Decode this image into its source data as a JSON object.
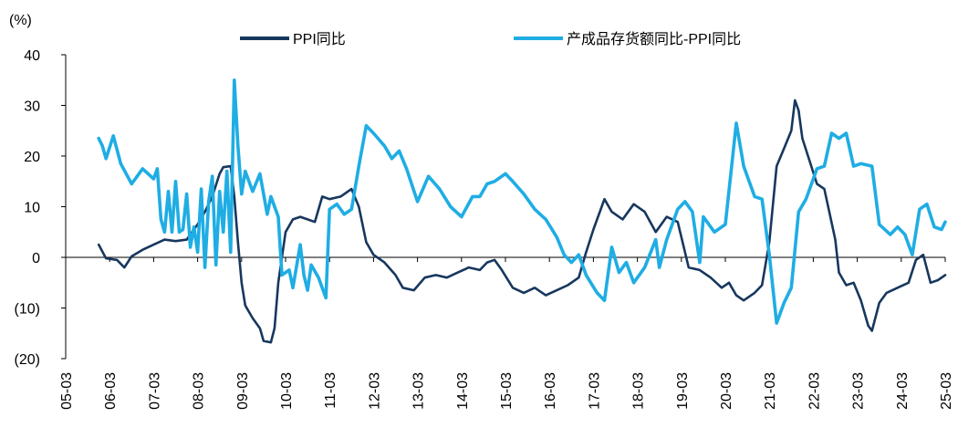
{
  "chart_data": {
    "type": "line",
    "unit_label": "(%)",
    "ylim": [
      -20,
      40
    ],
    "y_ticks": [
      -20,
      -10,
      0,
      10,
      20,
      30,
      40
    ],
    "y_tick_labels": [
      "(20)",
      "(10)",
      "0",
      "10",
      "20",
      "30",
      "40"
    ],
    "x_range": [
      "2005-03",
      "2025-03"
    ],
    "x_tick_labels": [
      "05-03",
      "06-03",
      "07-03",
      "08-03",
      "09-03",
      "10-03",
      "11-03",
      "12-03",
      "13-03",
      "14-03",
      "15-03",
      "16-03",
      "17-03",
      "18-03",
      "19-03",
      "20-03",
      "21-03",
      "22-03",
      "23-03",
      "24-03",
      "25-03"
    ],
    "grid": false,
    "legend_position": "top",
    "series": [
      {
        "name": "PPI同比",
        "color": "#17375E",
        "points": [
          [
            "2005-12",
            2.5
          ],
          [
            "2006-02",
            -0.2
          ],
          [
            "2006-05",
            -0.5
          ],
          [
            "2006-07",
            -2.0
          ],
          [
            "2006-09",
            0.2
          ],
          [
            "2006-12",
            1.5
          ],
          [
            "2007-03",
            2.5
          ],
          [
            "2007-06",
            3.5
          ],
          [
            "2007-09",
            3.2
          ],
          [
            "2007-12",
            3.5
          ],
          [
            "2008-03",
            6.5
          ],
          [
            "2008-05",
            9.0
          ],
          [
            "2008-07",
            12.0
          ],
          [
            "2008-09",
            16.5
          ],
          [
            "2008-10",
            17.8
          ],
          [
            "2008-12",
            18.0
          ],
          [
            "2009-01",
            12.0
          ],
          [
            "2009-02",
            3.0
          ],
          [
            "2009-03",
            -5.0
          ],
          [
            "2009-04",
            -9.5
          ],
          [
            "2009-06",
            -12.0
          ],
          [
            "2009-08",
            -14.0
          ],
          [
            "2009-09",
            -16.5
          ],
          [
            "2009-11",
            -16.8
          ],
          [
            "2009-12",
            -14.0
          ],
          [
            "2010-01",
            -5.0
          ],
          [
            "2010-03",
            5.0
          ],
          [
            "2010-05",
            7.5
          ],
          [
            "2010-07",
            8.0
          ],
          [
            "2010-09",
            7.5
          ],
          [
            "2010-11",
            7.0
          ],
          [
            "2011-01",
            12.0
          ],
          [
            "2011-03",
            11.5
          ],
          [
            "2011-06",
            12.0
          ],
          [
            "2011-09",
            13.5
          ],
          [
            "2011-11",
            10.0
          ],
          [
            "2012-01",
            3.0
          ],
          [
            "2012-03",
            0.5
          ],
          [
            "2012-06",
            -1.0
          ],
          [
            "2012-09",
            -3.5
          ],
          [
            "2012-11",
            -6.0
          ],
          [
            "2013-02",
            -6.5
          ],
          [
            "2013-05",
            -4.0
          ],
          [
            "2013-08",
            -3.5
          ],
          [
            "2013-11",
            -4.0
          ],
          [
            "2014-02",
            -3.0
          ],
          [
            "2014-05",
            -2.0
          ],
          [
            "2014-08",
            -2.5
          ],
          [
            "2014-10",
            -1.0
          ],
          [
            "2014-12",
            -0.5
          ],
          [
            "2015-02",
            -2.5
          ],
          [
            "2015-05",
            -6.0
          ],
          [
            "2015-08",
            -7.0
          ],
          [
            "2015-11",
            -6.0
          ],
          [
            "2016-02",
            -7.5
          ],
          [
            "2016-05",
            -6.5
          ],
          [
            "2016-08",
            -5.5
          ],
          [
            "2016-11",
            -4.0
          ],
          [
            "2017-01",
            1.0
          ],
          [
            "2017-03",
            5.5
          ],
          [
            "2017-06",
            11.5
          ],
          [
            "2017-08",
            9.0
          ],
          [
            "2017-11",
            7.5
          ],
          [
            "2018-02",
            10.5
          ],
          [
            "2018-05",
            9.0
          ],
          [
            "2018-08",
            5.0
          ],
          [
            "2018-11",
            8.0
          ],
          [
            "2019-02",
            7.0
          ],
          [
            "2019-05",
            -2.0
          ],
          [
            "2019-08",
            -2.5
          ],
          [
            "2019-11",
            -4.0
          ],
          [
            "2020-02",
            -6.0
          ],
          [
            "2020-04",
            -5.0
          ],
          [
            "2020-06",
            -7.5
          ],
          [
            "2020-08",
            -8.5
          ],
          [
            "2020-11",
            -7.0
          ],
          [
            "2021-01",
            -5.5
          ],
          [
            "2021-03",
            3.0
          ],
          [
            "2021-05",
            18.0
          ],
          [
            "2021-07",
            21.5
          ],
          [
            "2021-09",
            25.0
          ],
          [
            "2021-10",
            31.0
          ],
          [
            "2021-11",
            29.0
          ],
          [
            "2021-12",
            23.5
          ],
          [
            "2022-02",
            19.0
          ],
          [
            "2022-04",
            14.5
          ],
          [
            "2022-06",
            13.5
          ],
          [
            "2022-09",
            3.5
          ],
          [
            "2022-10",
            -3.0
          ],
          [
            "2022-12",
            -5.5
          ],
          [
            "2023-02",
            -5.0
          ],
          [
            "2023-04",
            -8.5
          ],
          [
            "2023-06",
            -13.5
          ],
          [
            "2023-07",
            -14.5
          ],
          [
            "2023-09",
            -9.0
          ],
          [
            "2023-11",
            -7.0
          ],
          [
            "2024-02",
            -6.0
          ],
          [
            "2024-05",
            -5.0
          ],
          [
            "2024-07",
            -0.5
          ],
          [
            "2024-09",
            0.5
          ],
          [
            "2024-11",
            -5.0
          ],
          [
            "2025-01",
            -4.5
          ],
          [
            "2025-03",
            -3.5
          ]
        ]
      },
      {
        "name": "产成品存货额同比-PPI同比",
        "color": "#1FADE4",
        "points": [
          [
            "2005-12",
            23.5
          ],
          [
            "2006-01",
            22.0
          ],
          [
            "2006-02",
            19.5
          ],
          [
            "2006-04",
            24.0
          ],
          [
            "2006-06",
            18.5
          ],
          [
            "2006-09",
            14.5
          ],
          [
            "2006-12",
            17.5
          ],
          [
            "2007-03",
            15.5
          ],
          [
            "2007-04",
            17.5
          ],
          [
            "2007-05",
            7.5
          ],
          [
            "2007-06",
            5.0
          ],
          [
            "2007-07",
            13.0
          ],
          [
            "2007-08",
            5.0
          ],
          [
            "2007-09",
            15.0
          ],
          [
            "2007-10",
            5.0
          ],
          [
            "2007-11",
            5.5
          ],
          [
            "2007-12",
            12.5
          ],
          [
            "2008-01",
            2.0
          ],
          [
            "2008-02",
            6.0
          ],
          [
            "2008-03",
            1.0
          ],
          [
            "2008-04",
            13.5
          ],
          [
            "2008-05",
            -2.0
          ],
          [
            "2008-06",
            11.0
          ],
          [
            "2008-07",
            16.0
          ],
          [
            "2008-08",
            -1.5
          ],
          [
            "2008-09",
            13.0
          ],
          [
            "2008-10",
            5.0
          ],
          [
            "2008-11",
            17.0
          ],
          [
            "2008-12",
            1.0
          ],
          [
            "2009-01",
            35.0
          ],
          [
            "2009-02",
            22.0
          ],
          [
            "2009-03",
            12.5
          ],
          [
            "2009-04",
            17.0
          ],
          [
            "2009-06",
            13.0
          ],
          [
            "2009-08",
            16.5
          ],
          [
            "2009-10",
            8.5
          ],
          [
            "2009-11",
            12.0
          ],
          [
            "2010-01",
            8.0
          ],
          [
            "2010-02",
            -3.5
          ],
          [
            "2010-04",
            -2.5
          ],
          [
            "2010-05",
            -6.0
          ],
          [
            "2010-07",
            2.5
          ],
          [
            "2010-08",
            -3.5
          ],
          [
            "2010-09",
            -6.5
          ],
          [
            "2010-10",
            -1.5
          ],
          [
            "2010-12",
            -4.0
          ],
          [
            "2011-02",
            -8.0
          ],
          [
            "2011-03",
            9.5
          ],
          [
            "2011-05",
            10.5
          ],
          [
            "2011-07",
            8.5
          ],
          [
            "2011-09",
            9.5
          ],
          [
            "2011-11",
            18.0
          ],
          [
            "2012-01",
            26.0
          ],
          [
            "2012-03",
            24.5
          ],
          [
            "2012-06",
            22.0
          ],
          [
            "2012-08",
            19.5
          ],
          [
            "2012-10",
            21.0
          ],
          [
            "2012-12",
            17.5
          ],
          [
            "2013-03",
            11.0
          ],
          [
            "2013-06",
            16.0
          ],
          [
            "2013-09",
            13.5
          ],
          [
            "2013-12",
            10.0
          ],
          [
            "2014-03",
            8.0
          ],
          [
            "2014-06",
            12.0
          ],
          [
            "2014-08",
            12.0
          ],
          [
            "2014-10",
            14.5
          ],
          [
            "2014-12",
            15.0
          ],
          [
            "2015-03",
            16.5
          ],
          [
            "2015-05",
            15.0
          ],
          [
            "2015-08",
            12.5
          ],
          [
            "2015-11",
            9.5
          ],
          [
            "2016-02",
            7.5
          ],
          [
            "2016-05",
            4.0
          ],
          [
            "2016-07",
            0.5
          ],
          [
            "2016-09",
            -1.0
          ],
          [
            "2016-11",
            0.5
          ],
          [
            "2017-01",
            -3.5
          ],
          [
            "2017-04",
            -7.0
          ],
          [
            "2017-06",
            -8.5
          ],
          [
            "2017-08",
            2.0
          ],
          [
            "2017-10",
            -3.0
          ],
          [
            "2017-12",
            -1.0
          ],
          [
            "2018-02",
            -5.0
          ],
          [
            "2018-05",
            -2.0
          ],
          [
            "2018-08",
            3.5
          ],
          [
            "2018-09",
            -2.0
          ],
          [
            "2018-11",
            3.5
          ],
          [
            "2019-02",
            9.5
          ],
          [
            "2019-04",
            11.0
          ],
          [
            "2019-06",
            9.0
          ],
          [
            "2019-08",
            -1.0
          ],
          [
            "2019-09",
            8.0
          ],
          [
            "2019-12",
            5.0
          ],
          [
            "2020-03",
            6.5
          ],
          [
            "2020-06",
            26.5
          ],
          [
            "2020-08",
            18.0
          ],
          [
            "2020-11",
            12.0
          ],
          [
            "2021-01",
            11.5
          ],
          [
            "2021-03",
            0.5
          ],
          [
            "2021-05",
            -13.0
          ],
          [
            "2021-07",
            -9.0
          ],
          [
            "2021-09",
            -6.0
          ],
          [
            "2021-11",
            9.0
          ],
          [
            "2022-01",
            11.5
          ],
          [
            "2022-04",
            17.5
          ],
          [
            "2022-06",
            18.0
          ],
          [
            "2022-08",
            24.5
          ],
          [
            "2022-10",
            23.5
          ],
          [
            "2022-12",
            24.5
          ],
          [
            "2023-02",
            18.0
          ],
          [
            "2023-04",
            18.5
          ],
          [
            "2023-07",
            18.0
          ],
          [
            "2023-09",
            6.5
          ],
          [
            "2023-12",
            4.5
          ],
          [
            "2024-02",
            6.0
          ],
          [
            "2024-04",
            4.5
          ],
          [
            "2024-06",
            0.5
          ],
          [
            "2024-08",
            9.5
          ],
          [
            "2024-10",
            10.5
          ],
          [
            "2024-12",
            6.0
          ],
          [
            "2025-02",
            5.5
          ],
          [
            "2025-03",
            7.0
          ]
        ]
      }
    ]
  }
}
